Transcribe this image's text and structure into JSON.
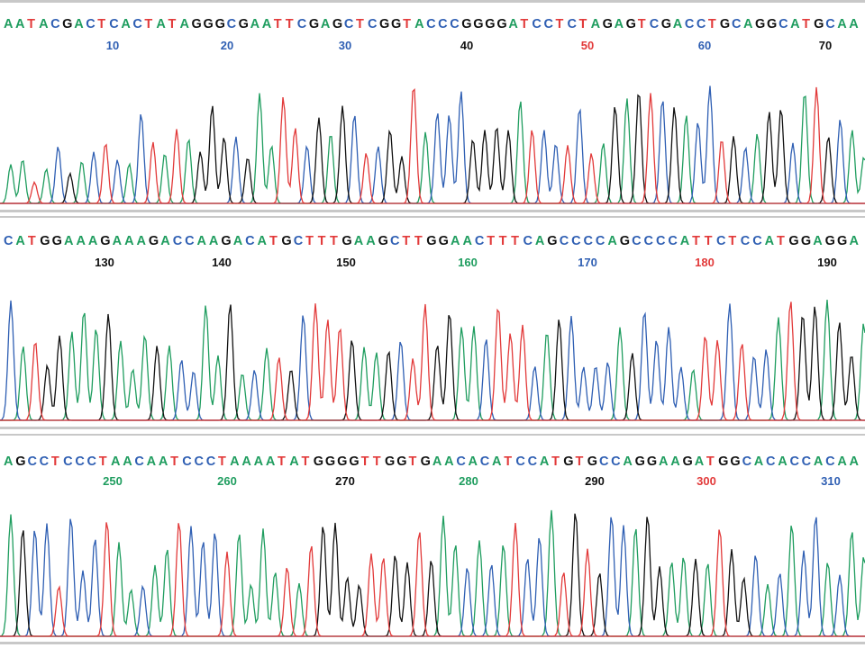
{
  "colors": {
    "A": "#1f9d5f",
    "C": "#2f5fb3",
    "G": "#111111",
    "T": "#e23a3a",
    "separator": "#c8c8c8",
    "baseline": "#e23a3a"
  },
  "chart_data": [
    {
      "type": "line",
      "title": "",
      "sequence": "AATACGACTCACTATAGGGCGAATTCGAGCTCGGTACCCGGGGATCCTCTAGAGTCGACCTGCAGGCATGCAA",
      "ticks": [
        {
          "label": "10",
          "color": "C"
        },
        {
          "label": "20",
          "color": "C"
        },
        {
          "label": "30",
          "color": "C"
        },
        {
          "label": "40",
          "color": "G"
        },
        {
          "label": "50",
          "color": "T"
        },
        {
          "label": "60",
          "color": "C"
        },
        {
          "label": "70",
          "color": "G"
        }
      ],
      "series": [
        {
          "name": "A"
        },
        {
          "name": "C"
        },
        {
          "name": "G"
        },
        {
          "name": "T"
        }
      ]
    },
    {
      "type": "line",
      "title": "",
      "sequence": "CATGGAAAGAAAGACCAAGACATGCTTTGAAGCTTGGAACTTTCAGCCCCAGCCCCATTCTCCATGGAGGA",
      "ticks": [
        {
          "label": "130",
          "color": "G"
        },
        {
          "label": "140",
          "color": "G"
        },
        {
          "label": "150",
          "color": "G"
        },
        {
          "label": "160",
          "color": "A"
        },
        {
          "label": "170",
          "color": "C"
        },
        {
          "label": "180",
          "color": "T"
        },
        {
          "label": "190",
          "color": "G"
        }
      ],
      "series": [
        {
          "name": "A"
        },
        {
          "name": "C"
        },
        {
          "name": "G"
        },
        {
          "name": "T"
        }
      ]
    },
    {
      "type": "line",
      "title": "",
      "sequence": "AGCCTCCCTAACAATCCCTAAAATATGGGGTTGGTGAACACATCCATGTGCCAGGAAGATGGCACACCACAA",
      "ticks": [
        {
          "label": "250",
          "color": "A"
        },
        {
          "label": "260",
          "color": "A"
        },
        {
          "label": "270",
          "color": "G"
        },
        {
          "label": "280",
          "color": "A"
        },
        {
          "label": "290",
          "color": "G"
        },
        {
          "label": "300",
          "color": "T"
        },
        {
          "label": "310",
          "color": "C"
        }
      ],
      "series": [
        {
          "name": "A"
        },
        {
          "name": "C"
        },
        {
          "name": "G"
        },
        {
          "name": "T"
        }
      ]
    }
  ]
}
